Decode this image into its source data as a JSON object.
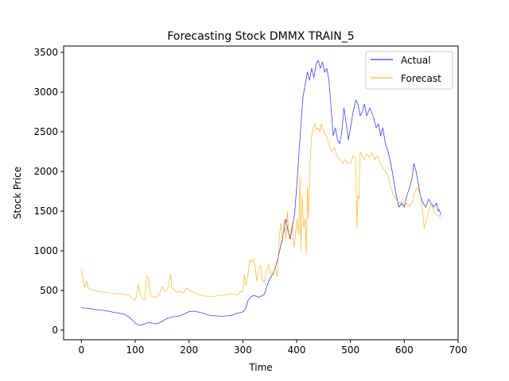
{
  "chart_data": {
    "type": "line",
    "title": "Forecasting Stock DMMX TRAIN_5",
    "xlabel": "Time",
    "ylabel": "Stock Price",
    "xlim": [
      -33,
      700
    ],
    "ylim": [
      -120,
      3580
    ],
    "xticks": [
      0,
      100,
      200,
      300,
      400,
      500,
      600,
      700
    ],
    "yticks": [
      0,
      500,
      1000,
      1500,
      2000,
      2500,
      3000,
      3500
    ],
    "grid": false,
    "legend": "top-right",
    "series": [
      {
        "name": "Actual",
        "color": "#0000ff",
        "points": [
          [
            0,
            285
          ],
          [
            10,
            275
          ],
          [
            20,
            268
          ],
          [
            30,
            255
          ],
          [
            40,
            250
          ],
          [
            50,
            240
          ],
          [
            60,
            225
          ],
          [
            70,
            215
          ],
          [
            80,
            200
          ],
          [
            90,
            160
          ],
          [
            100,
            90
          ],
          [
            105,
            70
          ],
          [
            110,
            65
          ],
          [
            118,
            78
          ],
          [
            125,
            100
          ],
          [
            130,
            90
          ],
          [
            140,
            80
          ],
          [
            150,
            110
          ],
          [
            160,
            150
          ],
          [
            170,
            170
          ],
          [
            180,
            175
          ],
          [
            190,
            200
          ],
          [
            200,
            235
          ],
          [
            210,
            240
          ],
          [
            220,
            225
          ],
          [
            230,
            205
          ],
          [
            240,
            185
          ],
          [
            250,
            180
          ],
          [
            260,
            175
          ],
          [
            270,
            180
          ],
          [
            280,
            190
          ],
          [
            290,
            215
          ],
          [
            300,
            230
          ],
          [
            305,
            270
          ],
          [
            310,
            380
          ],
          [
            315,
            420
          ],
          [
            320,
            440
          ],
          [
            330,
            415
          ],
          [
            340,
            450
          ],
          [
            345,
            560
          ],
          [
            350,
            650
          ],
          [
            355,
            700
          ],
          [
            360,
            780
          ],
          [
            365,
            900
          ],
          [
            370,
            1050
          ],
          [
            375,
            1200
          ],
          [
            380,
            1400
          ],
          [
            384,
            1250
          ],
          [
            388,
            1150
          ],
          [
            392,
            1300
          ],
          [
            396,
            1450
          ],
          [
            400,
            1800
          ],
          [
            404,
            2200
          ],
          [
            408,
            2600
          ],
          [
            412,
            2950
          ],
          [
            416,
            3100
          ],
          [
            420,
            3250
          ],
          [
            424,
            3150
          ],
          [
            428,
            3300
          ],
          [
            432,
            3180
          ],
          [
            436,
            3350
          ],
          [
            440,
            3400
          ],
          [
            444,
            3300
          ],
          [
            448,
            3380
          ],
          [
            452,
            3250
          ],
          [
            456,
            3300
          ],
          [
            460,
            3150
          ],
          [
            464,
            2800
          ],
          [
            468,
            2450
          ],
          [
            472,
            2550
          ],
          [
            476,
            2400
          ],
          [
            480,
            2350
          ],
          [
            484,
            2500
          ],
          [
            488,
            2800
          ],
          [
            492,
            2600
          ],
          [
            496,
            2400
          ],
          [
            500,
            2550
          ],
          [
            505,
            2750
          ],
          [
            510,
            2900
          ],
          [
            514,
            2850
          ],
          [
            518,
            2700
          ],
          [
            522,
            2750
          ],
          [
            526,
            2850
          ],
          [
            530,
            2700
          ],
          [
            536,
            2800
          ],
          [
            542,
            2700
          ],
          [
            548,
            2550
          ],
          [
            552,
            2600
          ],
          [
            556,
            2450
          ],
          [
            560,
            2550
          ],
          [
            565,
            2350
          ],
          [
            570,
            2250
          ],
          [
            575,
            2100
          ],
          [
            580,
            1900
          ],
          [
            585,
            1700
          ],
          [
            590,
            1550
          ],
          [
            595,
            1600
          ],
          [
            600,
            1550
          ],
          [
            605,
            1700
          ],
          [
            610,
            1800
          ],
          [
            614,
            1900
          ],
          [
            618,
            2100
          ],
          [
            622,
            2000
          ],
          [
            626,
            1850
          ],
          [
            630,
            1700
          ],
          [
            635,
            1600
          ],
          [
            640,
            1550
          ],
          [
            645,
            1650
          ],
          [
            650,
            1600
          ],
          [
            655,
            1550
          ],
          [
            660,
            1600
          ],
          [
            663,
            1500
          ],
          [
            665,
            1520
          ],
          [
            668,
            1450
          ]
        ]
      },
      {
        "name": "Forecast",
        "color": "#ffa500",
        "points": [
          [
            0,
            780
          ],
          [
            3,
            650
          ],
          [
            6,
            540
          ],
          [
            8,
            580
          ],
          [
            10,
            620
          ],
          [
            12,
            540
          ],
          [
            15,
            520
          ],
          [
            20,
            510
          ],
          [
            30,
            490
          ],
          [
            40,
            480
          ],
          [
            50,
            470
          ],
          [
            60,
            465
          ],
          [
            70,
            458
          ],
          [
            80,
            450
          ],
          [
            90,
            440
          ],
          [
            95,
            400
          ],
          [
            100,
            380
          ],
          [
            103,
            450
          ],
          [
            106,
            580
          ],
          [
            109,
            460
          ],
          [
            112,
            420
          ],
          [
            115,
            390
          ],
          [
            118,
            380
          ],
          [
            120,
            560
          ],
          [
            122,
            690
          ],
          [
            125,
            650
          ],
          [
            128,
            450
          ],
          [
            132,
            420
          ],
          [
            138,
            410
          ],
          [
            145,
            450
          ],
          [
            150,
            550
          ],
          [
            155,
            480
          ],
          [
            160,
            520
          ],
          [
            164,
            630
          ],
          [
            166,
            700
          ],
          [
            168,
            530
          ],
          [
            172,
            510
          ],
          [
            178,
            480
          ],
          [
            185,
            490
          ],
          [
            190,
            470
          ],
          [
            195,
            530
          ],
          [
            200,
            510
          ],
          [
            210,
            470
          ],
          [
            220,
            445
          ],
          [
            230,
            430
          ],
          [
            240,
            425
          ],
          [
            250,
            430
          ],
          [
            260,
            440
          ],
          [
            270,
            450
          ],
          [
            280,
            460
          ],
          [
            290,
            440
          ],
          [
            296,
            490
          ],
          [
            300,
            480
          ],
          [
            303,
            700
          ],
          [
            306,
            560
          ],
          [
            310,
            720
          ],
          [
            313,
            890
          ],
          [
            316,
            850
          ],
          [
            320,
            900
          ],
          [
            323,
            780
          ],
          [
            326,
            620
          ],
          [
            329,
            750
          ],
          [
            333,
            820
          ],
          [
            336,
            630
          ],
          [
            340,
            600
          ],
          [
            344,
            750
          ],
          [
            348,
            830
          ],
          [
            352,
            700
          ],
          [
            356,
            690
          ],
          [
            360,
            800
          ],
          [
            364,
            680
          ],
          [
            368,
            1200
          ],
          [
            371,
            1350
          ],
          [
            374,
            1100
          ],
          [
            377,
            1400
          ],
          [
            380,
            1150
          ],
          [
            383,
            1500
          ],
          [
            386,
            1150
          ],
          [
            389,
            1250
          ],
          [
            392,
            1350
          ],
          [
            395,
            1050
          ],
          [
            398,
            1200
          ],
          [
            401,
            1400
          ],
          [
            404,
            1200
          ],
          [
            406,
            1950
          ],
          [
            408,
            1000
          ],
          [
            410,
            1700
          ],
          [
            413,
            1300
          ],
          [
            416,
            1400
          ],
          [
            418,
            950
          ],
          [
            420,
            1800
          ],
          [
            422,
            1400
          ],
          [
            424,
            1950
          ],
          [
            426,
            2250
          ],
          [
            428,
            2450
          ],
          [
            431,
            2550
          ],
          [
            434,
            2600
          ],
          [
            437,
            2520
          ],
          [
            440,
            2550
          ],
          [
            443,
            2500
          ],
          [
            446,
            2600
          ],
          [
            450,
            2500
          ],
          [
            455,
            2450
          ],
          [
            460,
            2350
          ],
          [
            465,
            2250
          ],
          [
            470,
            2300
          ],
          [
            475,
            2200
          ],
          [
            480,
            2150
          ],
          [
            485,
            2100
          ],
          [
            490,
            2150
          ],
          [
            495,
            2100
          ],
          [
            500,
            2100
          ],
          [
            505,
            2200
          ],
          [
            510,
            2150
          ],
          [
            512,
            1290
          ],
          [
            514,
            1700
          ],
          [
            516,
            1650
          ],
          [
            518,
            2250
          ],
          [
            522,
            2200
          ],
          [
            526,
            2150
          ],
          [
            530,
            2220
          ],
          [
            535,
            2180
          ],
          [
            540,
            2230
          ],
          [
            545,
            2150
          ],
          [
            550,
            2200
          ],
          [
            555,
            2100
          ],
          [
            560,
            2050
          ],
          [
            565,
            2000
          ],
          [
            570,
            1950
          ],
          [
            575,
            1800
          ],
          [
            580,
            1700
          ],
          [
            585,
            1650
          ],
          [
            590,
            1600
          ],
          [
            595,
            1620
          ],
          [
            600,
            1580
          ],
          [
            605,
            1600
          ],
          [
            610,
            1560
          ],
          [
            615,
            1620
          ],
          [
            620,
            1750
          ],
          [
            625,
            1800
          ],
          [
            630,
            1700
          ],
          [
            635,
            1450
          ],
          [
            637,
            1280
          ],
          [
            640,
            1350
          ],
          [
            645,
            1500
          ],
          [
            650,
            1600
          ],
          [
            655,
            1500
          ],
          [
            660,
            1450
          ],
          [
            665,
            1440
          ],
          [
            668,
            1420
          ]
        ]
      }
    ]
  }
}
